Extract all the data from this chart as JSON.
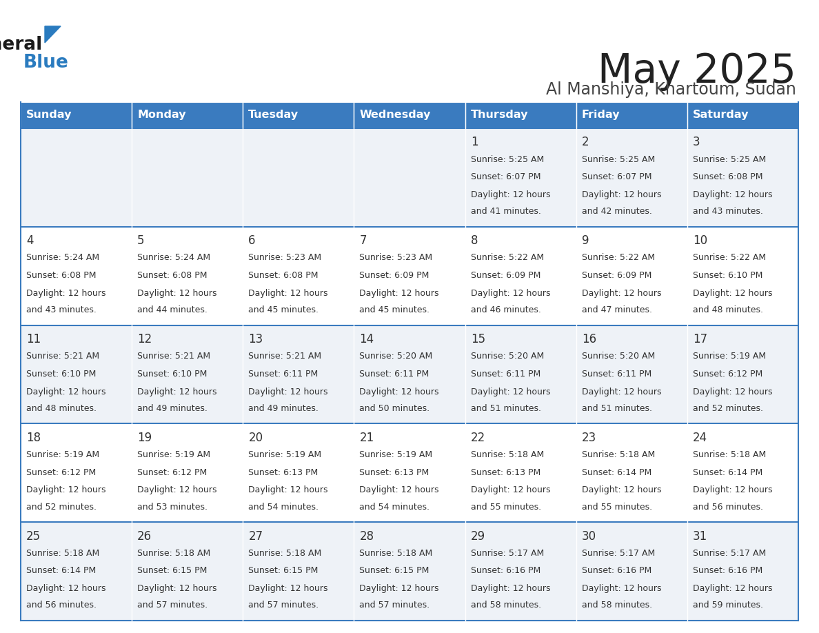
{
  "title": "May 2025",
  "subtitle": "Al Manshiya, Khartoum, Sudan",
  "days_of_week": [
    "Sunday",
    "Monday",
    "Tuesday",
    "Wednesday",
    "Thursday",
    "Friday",
    "Saturday"
  ],
  "header_bg": "#3a7bbf",
  "header_text": "#ffffff",
  "row_bg_even": "#eef2f7",
  "row_bg_odd": "#ffffff",
  "cell_text": "#333333",
  "border_color": "#3a7bbf",
  "title_color": "#222222",
  "subtitle_color": "#444444",
  "logo_general_color": "#1a1a1a",
  "logo_blue_color": "#2a7bbf",
  "logo_triangle_color": "#2a7bbf",
  "calendar": [
    [
      null,
      null,
      null,
      null,
      {
        "day": 1,
        "sunrise": "5:25 AM",
        "sunset": "6:07 PM",
        "daylight": "12 hours",
        "daylight2": "and 41 minutes."
      },
      {
        "day": 2,
        "sunrise": "5:25 AM",
        "sunset": "6:07 PM",
        "daylight": "12 hours",
        "daylight2": "and 42 minutes."
      },
      {
        "day": 3,
        "sunrise": "5:25 AM",
        "sunset": "6:08 PM",
        "daylight": "12 hours",
        "daylight2": "and 43 minutes."
      }
    ],
    [
      {
        "day": 4,
        "sunrise": "5:24 AM",
        "sunset": "6:08 PM",
        "daylight": "12 hours",
        "daylight2": "and 43 minutes."
      },
      {
        "day": 5,
        "sunrise": "5:24 AM",
        "sunset": "6:08 PM",
        "daylight": "12 hours",
        "daylight2": "and 44 minutes."
      },
      {
        "day": 6,
        "sunrise": "5:23 AM",
        "sunset": "6:08 PM",
        "daylight": "12 hours",
        "daylight2": "and 45 minutes."
      },
      {
        "day": 7,
        "sunrise": "5:23 AM",
        "sunset": "6:09 PM",
        "daylight": "12 hours",
        "daylight2": "and 45 minutes."
      },
      {
        "day": 8,
        "sunrise": "5:22 AM",
        "sunset": "6:09 PM",
        "daylight": "12 hours",
        "daylight2": "and 46 minutes."
      },
      {
        "day": 9,
        "sunrise": "5:22 AM",
        "sunset": "6:09 PM",
        "daylight": "12 hours",
        "daylight2": "and 47 minutes."
      },
      {
        "day": 10,
        "sunrise": "5:22 AM",
        "sunset": "6:10 PM",
        "daylight": "12 hours",
        "daylight2": "and 48 minutes."
      }
    ],
    [
      {
        "day": 11,
        "sunrise": "5:21 AM",
        "sunset": "6:10 PM",
        "daylight": "12 hours",
        "daylight2": "and 48 minutes."
      },
      {
        "day": 12,
        "sunrise": "5:21 AM",
        "sunset": "6:10 PM",
        "daylight": "12 hours",
        "daylight2": "and 49 minutes."
      },
      {
        "day": 13,
        "sunrise": "5:21 AM",
        "sunset": "6:11 PM",
        "daylight": "12 hours",
        "daylight2": "and 49 minutes."
      },
      {
        "day": 14,
        "sunrise": "5:20 AM",
        "sunset": "6:11 PM",
        "daylight": "12 hours",
        "daylight2": "and 50 minutes."
      },
      {
        "day": 15,
        "sunrise": "5:20 AM",
        "sunset": "6:11 PM",
        "daylight": "12 hours",
        "daylight2": "and 51 minutes."
      },
      {
        "day": 16,
        "sunrise": "5:20 AM",
        "sunset": "6:11 PM",
        "daylight": "12 hours",
        "daylight2": "and 51 minutes."
      },
      {
        "day": 17,
        "sunrise": "5:19 AM",
        "sunset": "6:12 PM",
        "daylight": "12 hours",
        "daylight2": "and 52 minutes."
      }
    ],
    [
      {
        "day": 18,
        "sunrise": "5:19 AM",
        "sunset": "6:12 PM",
        "daylight": "12 hours",
        "daylight2": "and 52 minutes."
      },
      {
        "day": 19,
        "sunrise": "5:19 AM",
        "sunset": "6:12 PM",
        "daylight": "12 hours",
        "daylight2": "and 53 minutes."
      },
      {
        "day": 20,
        "sunrise": "5:19 AM",
        "sunset": "6:13 PM",
        "daylight": "12 hours",
        "daylight2": "and 54 minutes."
      },
      {
        "day": 21,
        "sunrise": "5:19 AM",
        "sunset": "6:13 PM",
        "daylight": "12 hours",
        "daylight2": "and 54 minutes."
      },
      {
        "day": 22,
        "sunrise": "5:18 AM",
        "sunset": "6:13 PM",
        "daylight": "12 hours",
        "daylight2": "and 55 minutes."
      },
      {
        "day": 23,
        "sunrise": "5:18 AM",
        "sunset": "6:14 PM",
        "daylight": "12 hours",
        "daylight2": "and 55 minutes."
      },
      {
        "day": 24,
        "sunrise": "5:18 AM",
        "sunset": "6:14 PM",
        "daylight": "12 hours",
        "daylight2": "and 56 minutes."
      }
    ],
    [
      {
        "day": 25,
        "sunrise": "5:18 AM",
        "sunset": "6:14 PM",
        "daylight": "12 hours",
        "daylight2": "and 56 minutes."
      },
      {
        "day": 26,
        "sunrise": "5:18 AM",
        "sunset": "6:15 PM",
        "daylight": "12 hours",
        "daylight2": "and 57 minutes."
      },
      {
        "day": 27,
        "sunrise": "5:18 AM",
        "sunset": "6:15 PM",
        "daylight": "12 hours",
        "daylight2": "and 57 minutes."
      },
      {
        "day": 28,
        "sunrise": "5:18 AM",
        "sunset": "6:15 PM",
        "daylight": "12 hours",
        "daylight2": "and 57 minutes."
      },
      {
        "day": 29,
        "sunrise": "5:17 AM",
        "sunset": "6:16 PM",
        "daylight": "12 hours",
        "daylight2": "and 58 minutes."
      },
      {
        "day": 30,
        "sunrise": "5:17 AM",
        "sunset": "6:16 PM",
        "daylight": "12 hours",
        "daylight2": "and 58 minutes."
      },
      {
        "day": 31,
        "sunrise": "5:17 AM",
        "sunset": "6:16 PM",
        "daylight": "12 hours",
        "daylight2": "and 59 minutes."
      }
    ]
  ]
}
